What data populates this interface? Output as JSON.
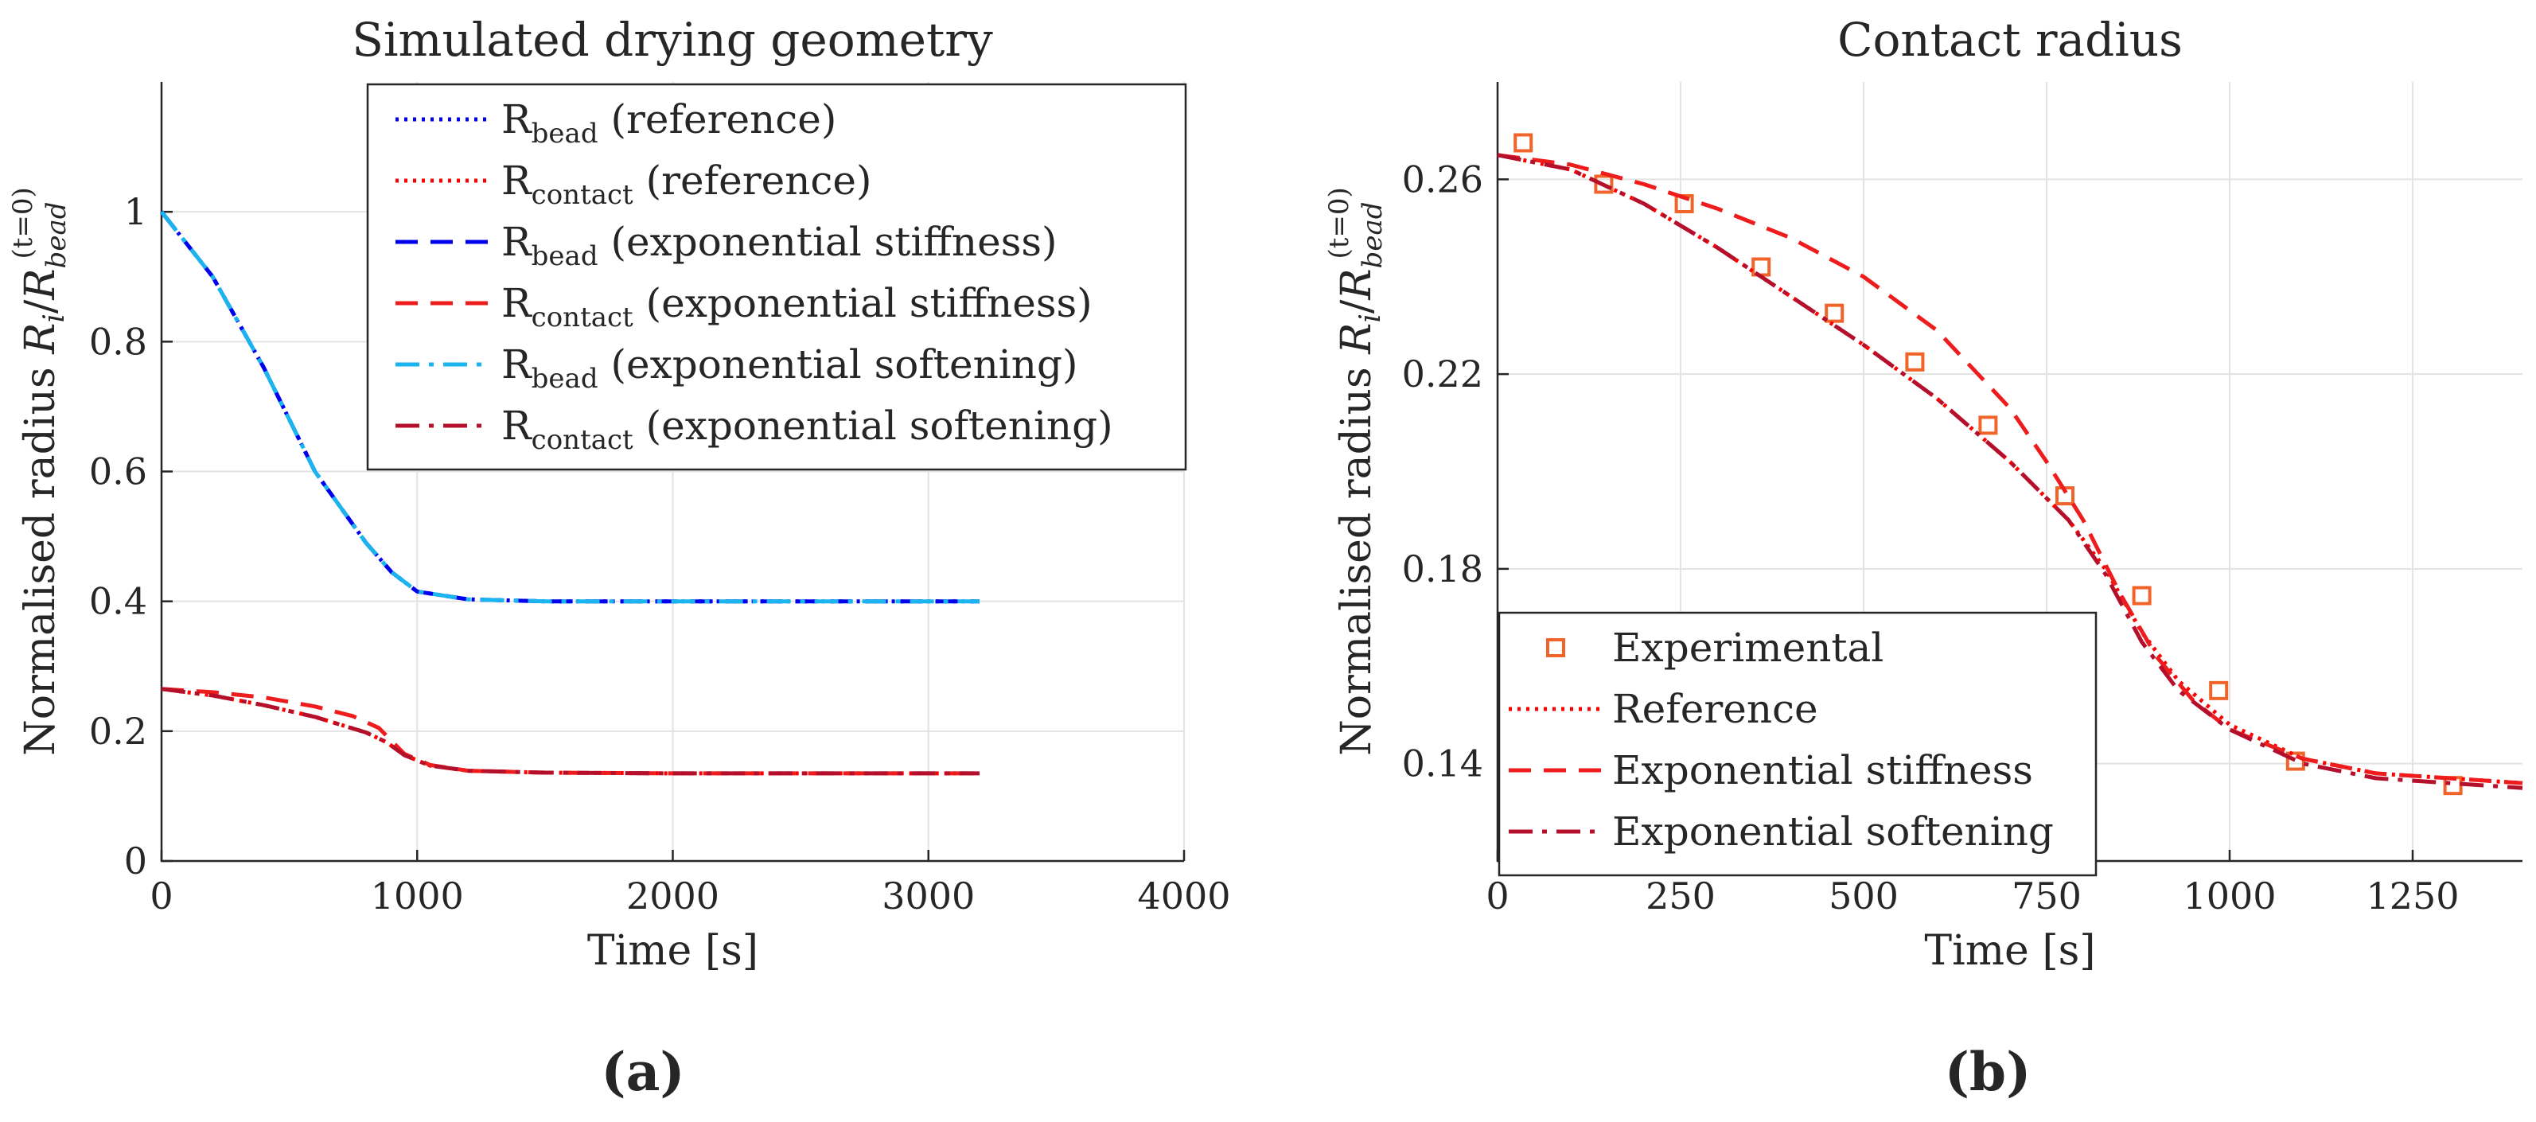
{
  "panel_labels": [
    "(a)",
    "(b)"
  ],
  "legend_a": [
    {
      "base": "R",
      "sub": "bead",
      "rest": " (reference)",
      "color": "#0000ee",
      "dash": "dot"
    },
    {
      "base": "R",
      "sub": "contact",
      "rest": " (reference)",
      "color": "#ff0000",
      "dash": "dot"
    },
    {
      "base": "R",
      "sub": "bead",
      "rest": " (exponential stiffness)",
      "color": "#0000ee",
      "dash": "dash"
    },
    {
      "base": "R",
      "sub": "contact",
      "rest": " (exponential stiffness)",
      "color": "#ee1c1c",
      "dash": "dash"
    },
    {
      "base": "R",
      "sub": "bead",
      "rest": " (exponential softening)",
      "color": "#1ab4ee",
      "dash": "dashdot"
    },
    {
      "base": "R",
      "sub": "contact",
      "rest": " (exponential softening)",
      "color": "#b4102c",
      "dash": "dashdot"
    }
  ],
  "legend_b": [
    {
      "label": "Experimental",
      "color": "#f0642a",
      "kind": "marker"
    },
    {
      "label": "Reference",
      "color": "#ff0000",
      "dash": "dot",
      "kind": "line"
    },
    {
      "label": "Exponential stiffness",
      "color": "#ee1c1c",
      "dash": "dash",
      "kind": "line"
    },
    {
      "label": "Exponential softening",
      "color": "#b4102c",
      "dash": "dashdot",
      "kind": "line"
    }
  ],
  "chart_data": [
    {
      "type": "line",
      "title": "Simulated drying geometry",
      "xlabel": "Time [s]",
      "ylabel": "Normalised radius R_i / R_bead^(t=0)",
      "xlim": [
        0,
        4000
      ],
      "ylim": [
        0,
        1.2
      ],
      "xticks": [
        "0",
        "1000",
        "2000",
        "3000",
        "4000"
      ],
      "yticks": [
        "0",
        "0.2",
        "0.4",
        "0.6",
        "0.8",
        "1"
      ],
      "grid": true,
      "legend_position": "top-right",
      "series": [
        {
          "name": "R_bead (reference)",
          "x": [
            0,
            200,
            400,
            600,
            800,
            900,
            1000,
            1200,
            1500,
            2000,
            2500,
            3000,
            3200
          ],
          "y": [
            1.0,
            0.9,
            0.76,
            0.6,
            0.49,
            0.445,
            0.415,
            0.403,
            0.4,
            0.4,
            0.4,
            0.4,
            0.4
          ]
        },
        {
          "name": "R_contact (reference)",
          "x": [
            0,
            200,
            400,
            600,
            800,
            880,
            950,
            1050,
            1200,
            1500,
            2000,
            2500,
            3000,
            3200
          ],
          "y": [
            0.265,
            0.255,
            0.24,
            0.222,
            0.198,
            0.183,
            0.163,
            0.147,
            0.139,
            0.136,
            0.135,
            0.135,
            0.135,
            0.135
          ]
        },
        {
          "name": "R_bead (exponential stiffness)",
          "x": [
            0,
            200,
            400,
            600,
            800,
            900,
            1000,
            1200,
            1500,
            2000,
            2500,
            3000,
            3200
          ],
          "y": [
            1.0,
            0.9,
            0.76,
            0.6,
            0.49,
            0.445,
            0.415,
            0.403,
            0.4,
            0.4,
            0.4,
            0.4,
            0.4
          ]
        },
        {
          "name": "R_contact (exponential stiffness)",
          "x": [
            0,
            200,
            400,
            600,
            750,
            850,
            900,
            950,
            1050,
            1200,
            1500,
            2000,
            2500,
            3000,
            3200
          ],
          "y": [
            0.265,
            0.26,
            0.252,
            0.238,
            0.223,
            0.205,
            0.185,
            0.165,
            0.148,
            0.139,
            0.136,
            0.135,
            0.135,
            0.135,
            0.135
          ]
        },
        {
          "name": "R_bead (exponential softening)",
          "x": [
            0,
            200,
            400,
            600,
            800,
            900,
            1000,
            1200,
            1500,
            2000,
            2500,
            3000,
            3200
          ],
          "y": [
            1.0,
            0.9,
            0.76,
            0.6,
            0.49,
            0.445,
            0.415,
            0.403,
            0.4,
            0.4,
            0.4,
            0.4,
            0.4
          ]
        },
        {
          "name": "R_contact (exponential softening)",
          "x": [
            0,
            200,
            400,
            600,
            800,
            880,
            950,
            1050,
            1200,
            1500,
            2000,
            2500,
            3000,
            3200
          ],
          "y": [
            0.265,
            0.255,
            0.24,
            0.222,
            0.198,
            0.183,
            0.163,
            0.147,
            0.139,
            0.136,
            0.135,
            0.135,
            0.135,
            0.135
          ]
        }
      ]
    },
    {
      "type": "line",
      "title": "Contact radius",
      "xlabel": "Time [s]",
      "ylabel": "Normalised radius R_i / R_bead^(t=0)",
      "xlim": [
        0,
        1400
      ],
      "ylim": [
        0.12,
        0.28
      ],
      "xticks": [
        "0",
        "250",
        "500",
        "750",
        "1000",
        "1250"
      ],
      "yticks": [
        "0.14",
        "0.18",
        "0.22",
        "0.26"
      ],
      "grid": true,
      "legend_position": "bottom-left",
      "series": [
        {
          "name": "Experimental",
          "x": [
            35,
            145,
            255,
            360,
            460,
            570,
            670,
            775,
            880,
            985,
            1090,
            1305
          ],
          "y": [
            0.2675,
            0.259,
            0.255,
            0.242,
            0.2325,
            0.2225,
            0.2095,
            0.195,
            0.1745,
            0.155,
            0.1405,
            0.1355
          ]
        },
        {
          "name": "Reference",
          "x": [
            0,
            100,
            200,
            300,
            400,
            500,
            600,
            700,
            780,
            830,
            880,
            930,
            1000,
            1100,
            1200,
            1300,
            1400
          ],
          "y": [
            0.265,
            0.262,
            0.255,
            0.246,
            0.236,
            0.226,
            0.215,
            0.202,
            0.19,
            0.18,
            0.167,
            0.157,
            0.148,
            0.141,
            0.138,
            0.137,
            0.136
          ]
        },
        {
          "name": "Exponential stiffness",
          "x": [
            0,
            100,
            200,
            300,
            400,
            500,
            600,
            700,
            750,
            800,
            850,
            900,
            950,
            1000,
            1100,
            1200,
            1300,
            1400
          ],
          "y": [
            0.265,
            0.263,
            0.259,
            0.254,
            0.248,
            0.24,
            0.229,
            0.213,
            0.202,
            0.19,
            0.175,
            0.162,
            0.153,
            0.147,
            0.141,
            0.138,
            0.137,
            0.136
          ]
        },
        {
          "name": "Exponential softening",
          "x": [
            0,
            100,
            200,
            300,
            400,
            500,
            600,
            700,
            780,
            830,
            880,
            930,
            1000,
            1100,
            1200,
            1300,
            1400
          ],
          "y": [
            0.265,
            0.262,
            0.255,
            0.246,
            0.236,
            0.226,
            0.215,
            0.202,
            0.19,
            0.179,
            0.165,
            0.155,
            0.147,
            0.14,
            0.137,
            0.136,
            0.135
          ]
        }
      ]
    }
  ]
}
